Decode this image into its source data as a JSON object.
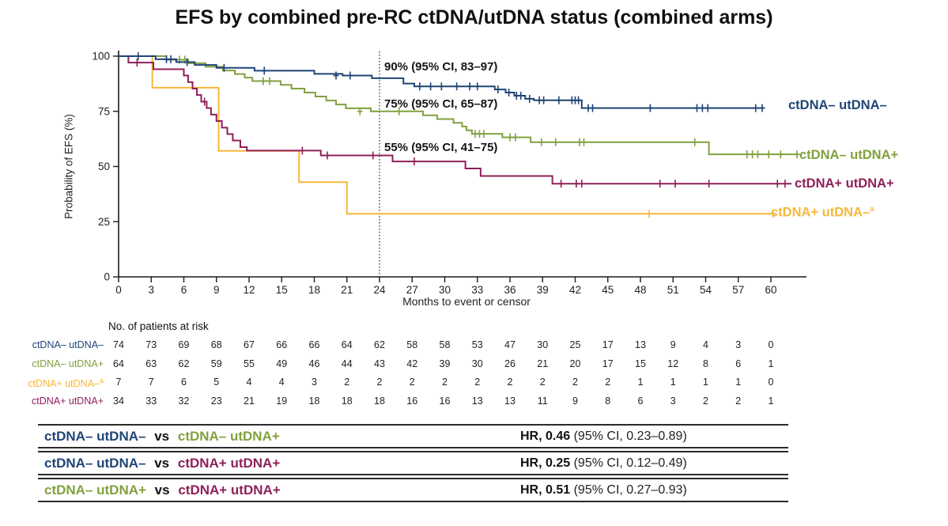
{
  "title": "EFS by combined pre-RC ctDNA/utDNA status (combined arms)",
  "axes": {
    "y_label": "Probability of EFS (%)",
    "x_label": "Months to event or censor",
    "x_ticks": [
      0,
      3,
      6,
      9,
      12,
      15,
      18,
      21,
      24,
      27,
      30,
      33,
      36,
      39,
      42,
      45,
      48,
      51,
      54,
      57,
      60
    ],
    "y_ticks": [
      100,
      75,
      50,
      25,
      0
    ],
    "x_range": [
      0,
      63
    ],
    "y_range": [
      0,
      100
    ]
  },
  "reference_line_month": 24,
  "annotations": [
    {
      "text": "90% (95% CI, 83–97)"
    },
    {
      "text": "75% (95% CI, 65–87)"
    },
    {
      "text": "55% (95% CI, 41–75)"
    }
  ],
  "chart_data": {
    "type": "line",
    "subtype": "kaplan-meier-step",
    "xlabel": "Months to event or censor",
    "ylabel": "Probability of EFS (%)",
    "grid": false,
    "legend_position": "right-of-curve-end",
    "series": [
      {
        "name": "ctDNA+ utDNA-",
        "label": "ctDNA+ utDNA–",
        "sup": "a",
        "color": "#F7B73C",
        "steps": [
          [
            0,
            100
          ],
          [
            3.1,
            85.7
          ],
          [
            9.2,
            57.1
          ],
          [
            16.6,
            42.9
          ],
          [
            21,
            28.6
          ],
          [
            60.4,
            28.6
          ]
        ],
        "censors": [
          [
            48.8,
            28.6
          ],
          [
            60.2,
            28.6
          ]
        ]
      },
      {
        "name": "ctDNA+ utDNA+",
        "label": "ctDNA+ utDNA+",
        "sup": "",
        "color": "#8E2059",
        "steps": [
          [
            0,
            100
          ],
          [
            0.9,
            97.1
          ],
          [
            3.2,
            94.1
          ],
          [
            6,
            91.2
          ],
          [
            6.4,
            88.2
          ],
          [
            6.8,
            85.3
          ],
          [
            7.2,
            82.4
          ],
          [
            7.6,
            79.4
          ],
          [
            8.1,
            76.5
          ],
          [
            8.5,
            73.5
          ],
          [
            9,
            70.6
          ],
          [
            9.5,
            67.6
          ],
          [
            10,
            64.7
          ],
          [
            10.5,
            61.8
          ],
          [
            11.2,
            58.8
          ],
          [
            11.8,
            57.2
          ],
          [
            18.6,
            55
          ],
          [
            25.2,
            52.3
          ],
          [
            31.9,
            49.1
          ],
          [
            33.3,
            45.7
          ],
          [
            39.9,
            42.2
          ],
          [
            61.9,
            42.2
          ]
        ],
        "censors": [
          [
            1.7,
            97.1
          ],
          [
            7.9,
            79.4
          ],
          [
            16.9,
            57.2
          ],
          [
            19.2,
            55
          ],
          [
            23.4,
            55
          ],
          [
            27.2,
            52.3
          ],
          [
            40.7,
            42.2
          ],
          [
            42.1,
            42.2
          ],
          [
            42.6,
            42.2
          ],
          [
            49.8,
            42.2
          ],
          [
            51.2,
            42.2
          ],
          [
            54.3,
            42.2
          ],
          [
            60.6,
            42.2
          ],
          [
            61.3,
            42.2
          ]
        ]
      },
      {
        "name": "ctDNA- utDNA+",
        "label": "ctDNA– utDNA+",
        "sup": "",
        "color": "#81A13E",
        "steps": [
          [
            0,
            100
          ],
          [
            4.4,
            98.4
          ],
          [
            6.4,
            96.8
          ],
          [
            8,
            95.2
          ],
          [
            9.6,
            93.5
          ],
          [
            10.7,
            91.9
          ],
          [
            11.6,
            90.3
          ],
          [
            12.3,
            88.7
          ],
          [
            14.9,
            87
          ],
          [
            15.9,
            85.3
          ],
          [
            17.1,
            83.5
          ],
          [
            18.1,
            81.7
          ],
          [
            19.1,
            79.9
          ],
          [
            20,
            78.1
          ],
          [
            20.9,
            76.4
          ],
          [
            23.2,
            75
          ],
          [
            28,
            73.2
          ],
          [
            29.3,
            71.5
          ],
          [
            30.8,
            69.8
          ],
          [
            31.6,
            68.1
          ],
          [
            32,
            66.4
          ],
          [
            32.5,
            64.8
          ],
          [
            35.3,
            63.2
          ],
          [
            37.9,
            61
          ],
          [
            54.3,
            55.5
          ],
          [
            62.6,
            55.5
          ]
        ],
        "censors": [
          [
            5.6,
            98.4
          ],
          [
            6.1,
            98.4
          ],
          [
            13.3,
            88.7
          ],
          [
            13.9,
            88.7
          ],
          [
            22.2,
            75
          ],
          [
            25.8,
            75
          ],
          [
            32.8,
            64.8
          ],
          [
            33.2,
            64.8
          ],
          [
            33.6,
            64.8
          ],
          [
            36,
            63.2
          ],
          [
            36.5,
            63.2
          ],
          [
            38.9,
            61
          ],
          [
            40.2,
            61
          ],
          [
            42.4,
            61
          ],
          [
            42.8,
            61
          ],
          [
            53,
            61
          ],
          [
            57.8,
            55.5
          ],
          [
            58.3,
            55.5
          ],
          [
            58.8,
            55.5
          ],
          [
            59.8,
            55.5
          ],
          [
            60.9,
            55.5
          ],
          [
            62.4,
            55.5
          ]
        ]
      },
      {
        "name": "ctDNA- utDNA-",
        "label": "ctDNA– utDNA–",
        "sup": "",
        "color": "#1F4575",
        "steps": [
          [
            0,
            100
          ],
          [
            3.4,
            98.6
          ],
          [
            5.3,
            97.3
          ],
          [
            7,
            96
          ],
          [
            9,
            94.7
          ],
          [
            12.5,
            93.4
          ],
          [
            18,
            92
          ],
          [
            20.6,
            91.2
          ],
          [
            23.3,
            90
          ],
          [
            26.2,
            87.6
          ],
          [
            27.2,
            86.3
          ],
          [
            34.6,
            84.9
          ],
          [
            35.6,
            83.5
          ],
          [
            36.4,
            82.1
          ],
          [
            37.4,
            80.7
          ],
          [
            38.2,
            80
          ],
          [
            42.6,
            76.5
          ],
          [
            59.4,
            76.5
          ]
        ],
        "censors": [
          [
            1.8,
            100
          ],
          [
            4.4,
            98.6
          ],
          [
            4.8,
            98.6
          ],
          [
            6.3,
            97.3
          ],
          [
            9.7,
            94.7
          ],
          [
            13.4,
            93.4
          ],
          [
            20,
            91.2
          ],
          [
            21.3,
            91.2
          ],
          [
            27.7,
            86.3
          ],
          [
            28.7,
            86.3
          ],
          [
            29.7,
            86.3
          ],
          [
            31.1,
            86.3
          ],
          [
            32.3,
            86.3
          ],
          [
            33,
            86.3
          ],
          [
            34.9,
            84.9
          ],
          [
            35.9,
            83.5
          ],
          [
            36.6,
            82.1
          ],
          [
            37,
            82.1
          ],
          [
            37.8,
            80.7
          ],
          [
            38.7,
            80
          ],
          [
            39.1,
            80
          ],
          [
            40.5,
            80
          ],
          [
            41.7,
            80
          ],
          [
            42,
            80
          ],
          [
            42.3,
            80
          ],
          [
            43.2,
            76.5
          ],
          [
            43.6,
            76.5
          ],
          [
            48.9,
            76.5
          ],
          [
            53.2,
            76.5
          ],
          [
            53.7,
            76.5
          ],
          [
            54.2,
            76.5
          ],
          [
            58.6,
            76.5
          ],
          [
            59.2,
            76.5
          ]
        ]
      }
    ]
  },
  "risk_table": {
    "header": "No. of patients at risk",
    "months": [
      0,
      3,
      6,
      9,
      12,
      15,
      18,
      21,
      24,
      27,
      30,
      33,
      36,
      39,
      42,
      45,
      48,
      51,
      54,
      57,
      60
    ],
    "rows": [
      {
        "label": "ctDNA– utDNA–",
        "sup": "",
        "color": "#1F4575",
        "values": [
          74,
          73,
          69,
          68,
          67,
          66,
          66,
          64,
          62,
          58,
          58,
          53,
          47,
          30,
          25,
          17,
          13,
          9,
          4,
          3,
          0
        ]
      },
      {
        "label": "ctDNA– utDNA+",
        "sup": "",
        "color": "#81A13E",
        "values": [
          64,
          63,
          62,
          59,
          55,
          49,
          46,
          44,
          43,
          42,
          39,
          30,
          26,
          21,
          20,
          17,
          15,
          12,
          8,
          6,
          1
        ]
      },
      {
        "label": "ctDNA+ utDNA–",
        "sup": "a",
        "color": "#F7B73C",
        "values": [
          7,
          7,
          6,
          5,
          4,
          4,
          3,
          2,
          2,
          2,
          2,
          2,
          2,
          2,
          2,
          2,
          1,
          1,
          1,
          1,
          0
        ]
      },
      {
        "label": "ctDNA+ utDNA+",
        "sup": "",
        "color": "#8E2059",
        "values": [
          34,
          33,
          32,
          23,
          21,
          19,
          18,
          18,
          18,
          16,
          16,
          13,
          13,
          11,
          9,
          8,
          6,
          3,
          2,
          2,
          1
        ]
      }
    ]
  },
  "comparisons": [
    {
      "a": {
        "label": "ctDNA– utDNA–",
        "color": "#1F4575"
      },
      "vs": "vs",
      "b": {
        "label": "ctDNA– utDNA+",
        "color": "#81A13E"
      },
      "hr": "HR, 0.46",
      "ci": " (95% CI, 0.23–0.89)"
    },
    {
      "a": {
        "label": "ctDNA– utDNA–",
        "color": "#1F4575"
      },
      "vs": "vs",
      "b": {
        "label": "ctDNA+ utDNA+",
        "color": "#8E2059"
      },
      "hr": "HR, 0.25",
      "ci": " (95% CI, 0.12–0.49)"
    },
    {
      "a": {
        "label": "ctDNA– utDNA+",
        "color": "#81A13E"
      },
      "vs": "vs",
      "b": {
        "label": "ctDNA+ utDNA+",
        "color": "#8E2059"
      },
      "hr": "HR, 0.51",
      "ci": " (95% CI, 0.27–0.93)"
    }
  ]
}
